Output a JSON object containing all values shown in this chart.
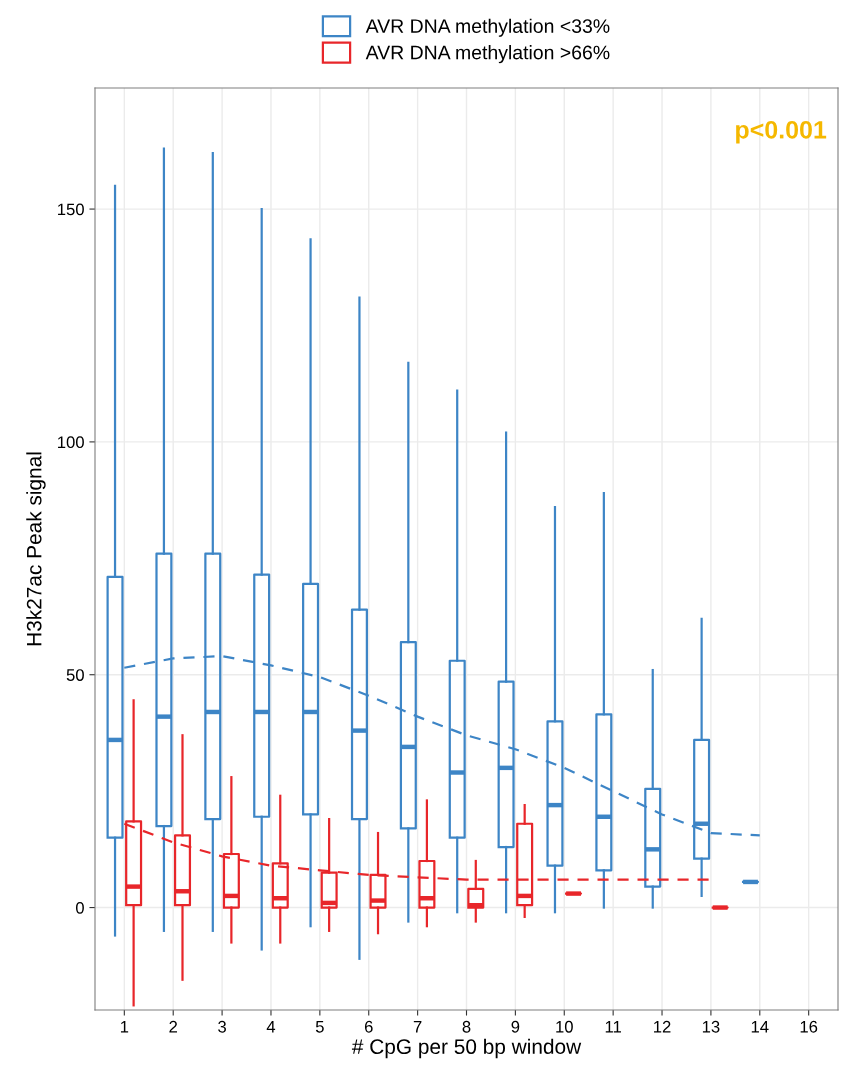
{
  "chart_data": {
    "type": "box",
    "xlabel": "# CpG per 50 bp window",
    "ylabel": "H3k27ac Peak signal",
    "categories": [
      "1",
      "2",
      "3",
      "4",
      "5",
      "6",
      "7",
      "8",
      "9",
      "10",
      "11",
      "12",
      "13",
      "14",
      "16"
    ],
    "ylim": [
      -22,
      176
    ],
    "yticks": [
      0,
      50,
      100,
      150
    ],
    "grid": true,
    "legend": "top",
    "marker": "none",
    "annotations": [
      "p<0.001"
    ],
    "series": [
      {
        "name": "AVR DNA methylation <33%",
        "color": "#3d85c6",
        "boxes": [
          {
            "low": -6,
            "q1": 15,
            "median": 36,
            "q3": 71,
            "high": 155
          },
          {
            "low": -5,
            "q1": 17.5,
            "median": 41,
            "q3": 76,
            "high": 163
          },
          {
            "low": -5,
            "q1": 19,
            "median": 42,
            "q3": 76,
            "high": 162
          },
          {
            "low": -9,
            "q1": 19.5,
            "median": 42,
            "q3": 71.5,
            "high": 150
          },
          {
            "low": -4,
            "q1": 20,
            "median": 42,
            "q3": 69.5,
            "high": 143.5
          },
          {
            "low": -11,
            "q1": 19,
            "median": 38,
            "q3": 64,
            "high": 131
          },
          {
            "low": -3,
            "q1": 17,
            "median": 34.5,
            "q3": 57,
            "high": 117
          },
          {
            "low": -1,
            "q1": 15,
            "median": 29,
            "q3": 53,
            "high": 111
          },
          {
            "low": -1,
            "q1": 13,
            "median": 30,
            "q3": 48.5,
            "high": 102
          },
          {
            "low": -1,
            "q1": 9,
            "median": 22,
            "q3": 40,
            "high": 86
          },
          {
            "low": 0,
            "q1": 8,
            "median": 19.5,
            "q3": 41.5,
            "high": 89
          },
          {
            "low": 0,
            "q1": 4.5,
            "median": 12.5,
            "q3": 25.5,
            "high": 51
          },
          {
            "low": 2.5,
            "q1": 10.5,
            "median": 18,
            "q3": 36,
            "high": 62
          },
          {
            "low": 5.5,
            "q1": 5.5,
            "median": 5.5,
            "q3": 5.5,
            "high": 5.5
          },
          null
        ]
      },
      {
        "name": "AVR DNA methylation >66%",
        "color": "#e8262a",
        "boxes": [
          {
            "low": -21,
            "q1": 0.5,
            "median": 4.5,
            "q3": 18.5,
            "high": 44.5
          },
          {
            "low": -15.5,
            "q1": 0.5,
            "median": 3.5,
            "q3": 15.5,
            "high": 37
          },
          {
            "low": -7.5,
            "q1": 0,
            "median": 2.5,
            "q3": 11.5,
            "high": 28
          },
          {
            "low": -7.5,
            "q1": 0,
            "median": 2,
            "q3": 9.5,
            "high": 24
          },
          {
            "low": -5,
            "q1": 0,
            "median": 1,
            "q3": 7.5,
            "high": 19
          },
          {
            "low": -5.5,
            "q1": 0,
            "median": 1.5,
            "q3": 7,
            "high": 16
          },
          {
            "low": -4,
            "q1": 0,
            "median": 2,
            "q3": 10,
            "high": 23
          },
          {
            "low": -3,
            "q1": 0,
            "median": 0.5,
            "q3": 4,
            "high": 10
          },
          {
            "low": -2,
            "q1": 0.5,
            "median": 2.5,
            "q3": 18,
            "high": 22
          },
          {
            "low": 3,
            "q1": 3,
            "median": 3,
            "q3": 3,
            "high": 3
          },
          null,
          null,
          {
            "low": 0,
            "q1": 0,
            "median": 0,
            "q3": 0,
            "high": 0
          },
          null,
          null
        ]
      },
      {
        "type": "line",
        "color": "#3d85c6",
        "line_style": "dashed",
        "x": [
          "1",
          "2",
          "3",
          "4",
          "5",
          "6",
          "7",
          "8",
          "9",
          "10",
          "11",
          "12",
          "13",
          "14"
        ],
        "values": [
          51.5,
          53.5,
          54,
          52,
          49.5,
          45.5,
          41,
          37,
          34,
          30,
          25,
          20,
          16,
          15.5
        ]
      },
      {
        "type": "line",
        "color": "#e8262a",
        "line_style": "dashed",
        "x": [
          "1",
          "2",
          "3",
          "4",
          "5",
          "6",
          "7",
          "8",
          "9",
          "10",
          "11",
          "12",
          "13"
        ],
        "values": [
          18,
          14,
          11,
          9,
          8,
          7,
          6.5,
          6,
          6,
          6,
          6,
          6,
          6
        ]
      }
    ]
  }
}
